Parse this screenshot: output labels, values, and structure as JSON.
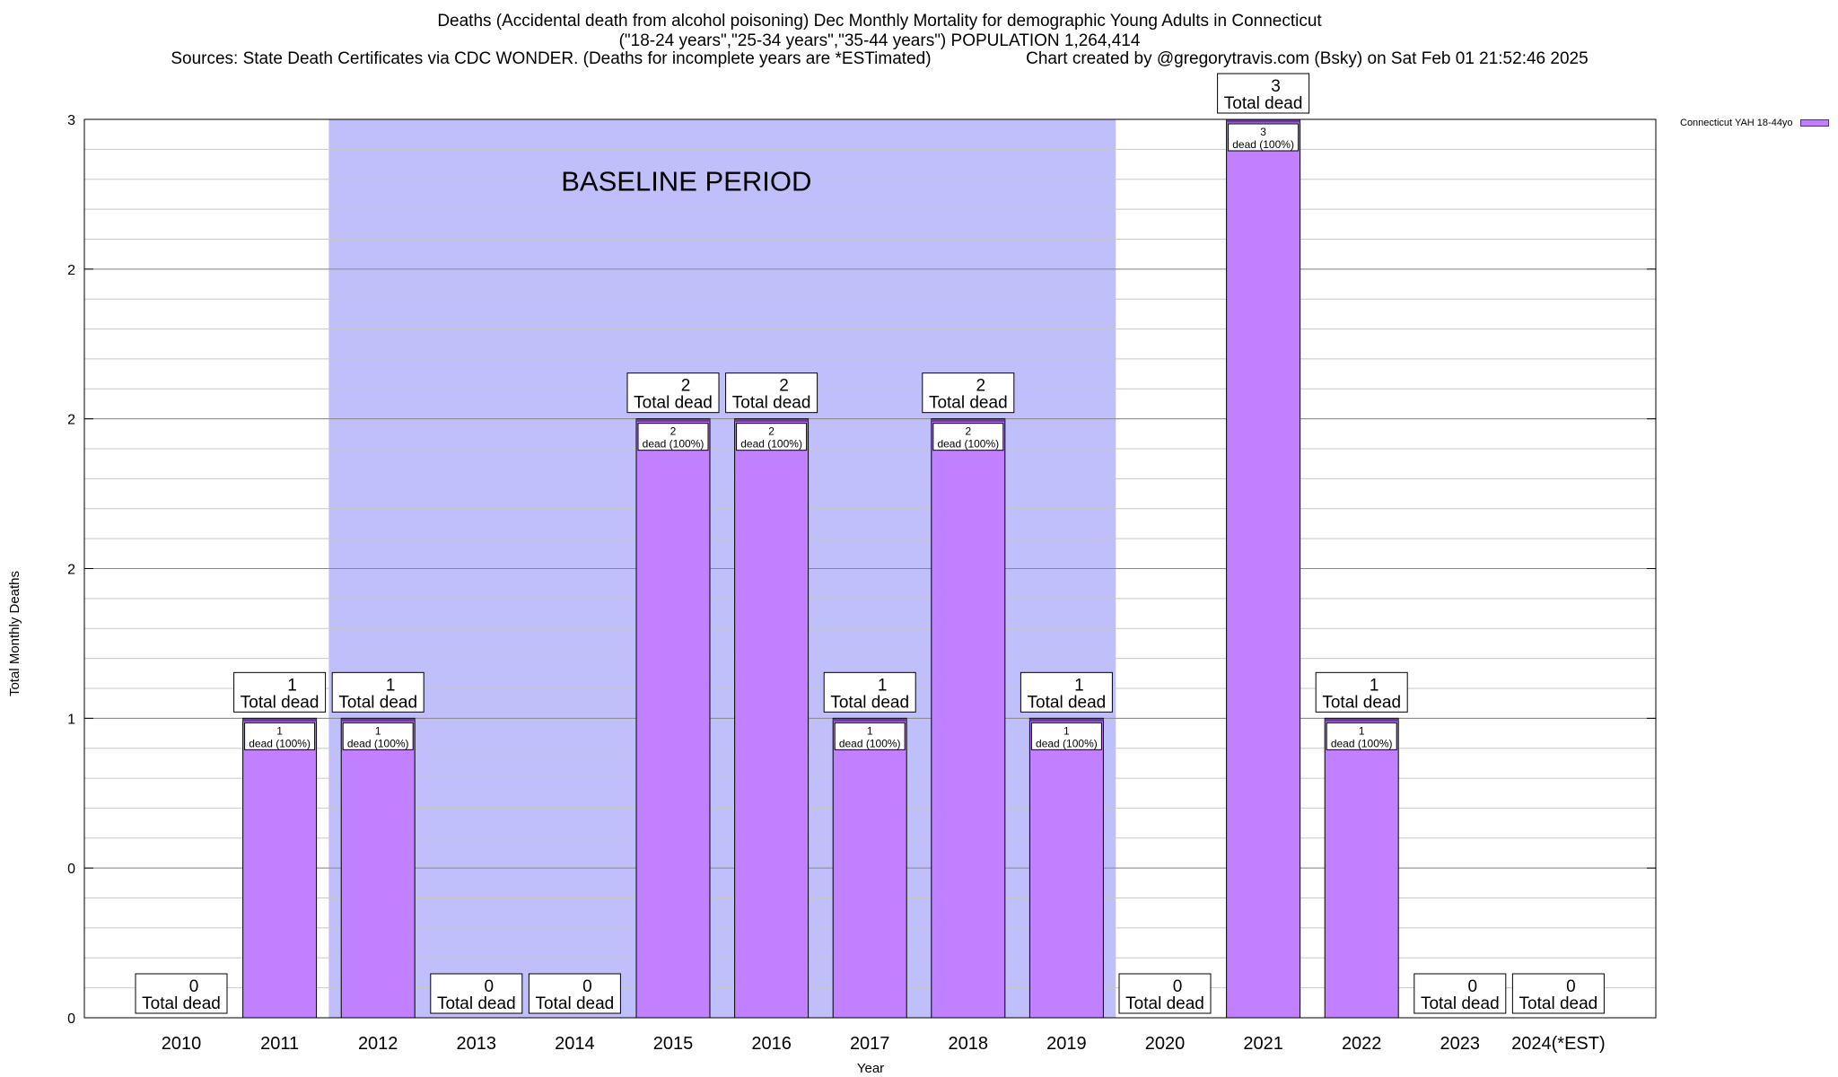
{
  "title": {
    "line1": "Deaths (Accidental death from alcohol poisoning) Dec Monthly Mortality for demographic Young Adults in Connecticut",
    "line2": "(\"18-24 years\",\"25-34 years\",\"35-44 years\") POPULATION 1,264,414",
    "sources": "Sources: State Death Certificates via CDC WONDER. (Deaths for incomplete years are *ESTimated)",
    "credit": "Chart created by @gregorytravis.com (Bsky) on Sat Feb 01 21:52:46 2025"
  },
  "colors": {
    "bar": "#c080ff",
    "bar_edge": "#6a3aa0",
    "baseline_shading": "#bfbffb",
    "grid": "#c8c8c8"
  },
  "chart_data": {
    "type": "bar",
    "categories": [
      "2010",
      "2011",
      "2012",
      "2013",
      "2014",
      "2015",
      "2016",
      "2017",
      "2018",
      "2019",
      "2020",
      "2021",
      "2022",
      "2023",
      "2024(*EST)"
    ],
    "series": [
      {
        "name": "Connecticut YAH 18-44yo",
        "values": [
          0,
          1,
          1,
          0,
          0,
          2,
          2,
          1,
          2,
          1,
          0,
          3,
          1,
          0,
          0
        ]
      }
    ],
    "top_labels": [
      "Total dead",
      "Total dead",
      "Total dead",
      "Total dead",
      "Total dead",
      "Total dead",
      "Total dead",
      "Total dead",
      "Total dead",
      "Total dead",
      "Total dead",
      "Total dead",
      "Total dead",
      "Total dead",
      "Total dead"
    ],
    "inner_labels": [
      "",
      "dead (100%)",
      "dead (100%)",
      "",
      "",
      "dead (100%)",
      "dead (100%)",
      "dead (100%)",
      "dead (100%)",
      "dead (100%)",
      "",
      "dead (100%)",
      "dead (100%)",
      "",
      ""
    ],
    "xlabel": "Year",
    "ylabel": "Total Monthly Deaths",
    "ylim": [
      0,
      3
    ],
    "yticks": [
      0,
      0.5,
      1,
      1.5,
      2,
      2.5,
      3
    ],
    "ytick_labels": [
      "0",
      "0",
      "1",
      "2",
      "2",
      "2",
      "3"
    ],
    "grid": true,
    "legend_position": "top-right",
    "annotation": "BASELINE PERIOD",
    "baseline_period": [
      "2012",
      "2019"
    ]
  }
}
